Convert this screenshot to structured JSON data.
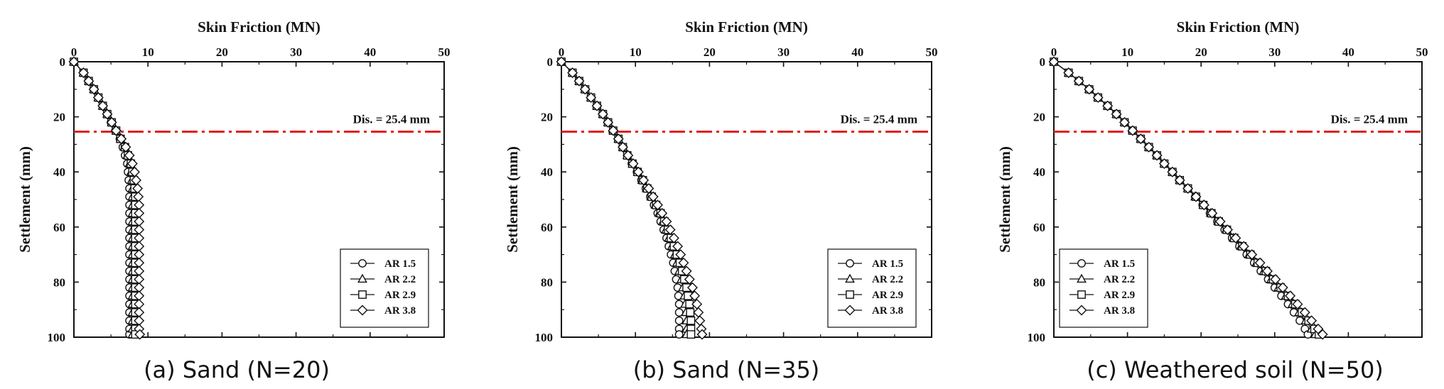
{
  "chart_data": [
    {
      "type": "line",
      "caption": "(a) Sand (N=20)",
      "xlabel": "Skin Friction (MN)",
      "ylabel": "Settlement (mm)",
      "xlim": [
        0,
        50
      ],
      "ylim": [
        0,
        100
      ],
      "x_ticks": [
        "0",
        "10",
        "20",
        "30",
        "40",
        "50"
      ],
      "y_ticks": [
        "0",
        "20",
        "40",
        "60",
        "80",
        "100"
      ],
      "annotation": "Dis. = 25.4 mm",
      "reference_line_y": 25.4,
      "legend_position": "bottom-right",
      "series": [
        {
          "name": "AR 1.5",
          "marker": "circle",
          "y": [
            0,
            4,
            7,
            10,
            13,
            16,
            19,
            22,
            25,
            28,
            31,
            34,
            37,
            40,
            43,
            46,
            49,
            52,
            55,
            58,
            61,
            64,
            67,
            70,
            73,
            76,
            79,
            82,
            85,
            88,
            91,
            94,
            97,
            99
          ],
          "x": [
            0,
            1.3,
            2.0,
            2.7,
            3.3,
            3.9,
            4.5,
            5.0,
            5.6,
            6.2,
            6.6,
            6.9,
            7.2,
            7.3,
            7.4,
            7.5,
            7.5,
            7.5,
            7.5,
            7.5,
            7.5,
            7.5,
            7.5,
            7.5,
            7.5,
            7.5,
            7.5,
            7.5,
            7.5,
            7.5,
            7.5,
            7.5,
            7.5,
            7.5
          ]
        },
        {
          "name": "AR 2.2",
          "marker": "triangle",
          "y": [
            0,
            4,
            7,
            10,
            13,
            16,
            19,
            22,
            25,
            28,
            31,
            34,
            37,
            40,
            43,
            46,
            49,
            52,
            55,
            58,
            61,
            64,
            67,
            70,
            73,
            76,
            79,
            82,
            85,
            88,
            91,
            94,
            97,
            99
          ],
          "x": [
            0,
            1.3,
            2.0,
            2.7,
            3.3,
            3.9,
            4.5,
            5.1,
            5.7,
            6.3,
            6.8,
            7.2,
            7.5,
            7.7,
            7.8,
            7.9,
            7.9,
            7.9,
            7.9,
            7.9,
            7.9,
            7.9,
            7.9,
            7.9,
            7.9,
            7.9,
            7.9,
            7.9,
            7.9,
            7.9,
            7.9,
            7.9,
            7.9,
            7.9
          ]
        },
        {
          "name": "AR 2.9",
          "marker": "square",
          "y": [
            0,
            4,
            7,
            10,
            13,
            16,
            19,
            22,
            25,
            28,
            31,
            34,
            37,
            40,
            43,
            46,
            49,
            52,
            55,
            58,
            61,
            64,
            67,
            70,
            73,
            76,
            79,
            82,
            85,
            88,
            91,
            94,
            97,
            99
          ],
          "x": [
            0,
            1.3,
            2.0,
            2.7,
            3.3,
            3.9,
            4.5,
            5.1,
            5.7,
            6.3,
            6.9,
            7.3,
            7.7,
            7.9,
            8.1,
            8.2,
            8.3,
            8.3,
            8.3,
            8.3,
            8.3,
            8.3,
            8.3,
            8.3,
            8.3,
            8.3,
            8.3,
            8.3,
            8.3,
            8.3,
            8.3,
            8.3,
            8.3,
            8.3
          ]
        },
        {
          "name": "AR 3.8",
          "marker": "diamond",
          "y": [
            0,
            4,
            7,
            10,
            13,
            16,
            19,
            22,
            25,
            28,
            31,
            34,
            37,
            40,
            43,
            46,
            49,
            52,
            55,
            58,
            61,
            64,
            67,
            70,
            73,
            76,
            79,
            82,
            85,
            88,
            91,
            94,
            97,
            99
          ],
          "x": [
            0,
            1.3,
            2.0,
            2.7,
            3.3,
            3.9,
            4.5,
            5.1,
            5.7,
            6.4,
            7.0,
            7.5,
            7.9,
            8.2,
            8.4,
            8.6,
            8.7,
            8.8,
            8.8,
            8.8,
            8.8,
            8.8,
            8.8,
            8.8,
            8.8,
            8.8,
            8.8,
            8.8,
            8.8,
            8.8,
            8.8,
            8.8,
            8.8,
            8.9
          ]
        }
      ]
    },
    {
      "type": "line",
      "caption": "(b) Sand (N=35)",
      "xlabel": "Skin Friction (MN)",
      "ylabel": "Settlement (mm)",
      "xlim": [
        0,
        50
      ],
      "ylim": [
        0,
        100
      ],
      "x_ticks": [
        "0",
        "10",
        "20",
        "30",
        "40",
        "50"
      ],
      "y_ticks": [
        "0",
        "20",
        "40",
        "60",
        "80",
        "100"
      ],
      "annotation": "Dis. = 25.4 mm",
      "reference_line_y": 25.4,
      "legend_position": "bottom-right",
      "series": [
        {
          "name": "AR 1.5",
          "marker": "circle",
          "y": [
            0,
            4,
            7,
            10,
            13,
            16,
            19,
            22,
            25,
            28,
            31,
            34,
            37,
            40,
            43,
            46,
            49,
            52,
            55,
            58,
            61,
            64,
            67,
            70,
            73,
            76,
            79,
            82,
            85,
            88,
            91,
            94,
            97,
            99
          ],
          "x": [
            0,
            1.5,
            2.4,
            3.2,
            4.0,
            4.8,
            5.6,
            6.3,
            7.0,
            7.7,
            8.3,
            8.9,
            9.5,
            10.2,
            10.8,
            11.4,
            12.0,
            12.5,
            13.0,
            13.4,
            13.8,
            14.2,
            14.5,
            14.8,
            15.1,
            15.3,
            15.5,
            15.7,
            15.8,
            15.9,
            15.9,
            15.9,
            15.9,
            15.9
          ]
        },
        {
          "name": "AR 2.2",
          "marker": "triangle",
          "y": [
            0,
            4,
            7,
            10,
            13,
            16,
            19,
            22,
            25,
            28,
            31,
            34,
            37,
            40,
            43,
            46,
            49,
            52,
            55,
            58,
            61,
            64,
            67,
            70,
            73,
            76,
            79,
            82,
            85,
            88,
            91,
            94,
            97,
            99
          ],
          "x": [
            0,
            1.5,
            2.4,
            3.2,
            4.0,
            4.8,
            5.6,
            6.3,
            7.0,
            7.7,
            8.3,
            8.9,
            9.6,
            10.3,
            10.9,
            11.5,
            12.1,
            12.7,
            13.2,
            13.7,
            14.1,
            14.5,
            14.9,
            15.3,
            15.6,
            15.9,
            16.2,
            16.4,
            16.6,
            16.7,
            16.8,
            16.9,
            16.9,
            16.9
          ]
        },
        {
          "name": "AR 2.9",
          "marker": "square",
          "y": [
            0,
            4,
            7,
            10,
            13,
            16,
            19,
            22,
            25,
            28,
            31,
            34,
            37,
            40,
            43,
            46,
            49,
            52,
            55,
            58,
            61,
            64,
            67,
            70,
            73,
            76,
            79,
            82,
            85,
            88,
            91,
            94,
            97,
            99
          ],
          "x": [
            0,
            1.5,
            2.4,
            3.2,
            4.0,
            4.8,
            5.6,
            6.3,
            7.0,
            7.7,
            8.3,
            8.9,
            9.6,
            10.3,
            11.0,
            11.6,
            12.2,
            12.8,
            13.4,
            13.9,
            14.4,
            14.8,
            15.2,
            15.6,
            16.0,
            16.3,
            16.6,
            16.9,
            17.1,
            17.3,
            17.4,
            17.5,
            17.5,
            17.5
          ]
        },
        {
          "name": "AR 3.8",
          "marker": "diamond",
          "y": [
            0,
            4,
            7,
            10,
            13,
            16,
            19,
            22,
            25,
            28,
            31,
            34,
            37,
            40,
            43,
            46,
            49,
            52,
            55,
            58,
            61,
            64,
            67,
            70,
            73,
            76,
            79,
            82,
            85,
            88,
            91,
            94,
            97,
            99
          ],
          "x": [
            0,
            1.5,
            2.4,
            3.2,
            4.0,
            4.8,
            5.6,
            6.3,
            7.0,
            7.7,
            8.3,
            9.0,
            9.7,
            10.4,
            11.1,
            11.8,
            12.4,
            13.0,
            13.6,
            14.2,
            14.7,
            15.2,
            15.7,
            16.1,
            16.5,
            16.9,
            17.3,
            17.7,
            18.0,
            18.3,
            18.5,
            18.7,
            18.9,
            19.0
          ]
        }
      ]
    },
    {
      "type": "line",
      "caption": "(c) Weathered soil (N=50)",
      "xlabel": "Skin Friction (MN)",
      "ylabel": "Settlement (mm)",
      "xlim": [
        0,
        50
      ],
      "ylim": [
        0,
        100
      ],
      "x_ticks": [
        "0",
        "10",
        "20",
        "30",
        "40",
        "50"
      ],
      "y_ticks": [
        "0",
        "20",
        "40",
        "60",
        "80",
        "100"
      ],
      "annotation": "Dis. = 25.4 mm",
      "reference_line_y": 25.4,
      "legend_position": "bottom-left",
      "series": [
        {
          "name": "AR 1.5",
          "marker": "circle",
          "y": [
            0,
            4,
            7,
            10,
            13,
            16,
            19,
            22,
            25,
            28,
            31,
            34,
            37,
            40,
            43,
            46,
            49,
            52,
            55,
            58,
            61,
            64,
            67,
            70,
            73,
            76,
            79,
            82,
            85,
            88,
            91,
            94,
            97,
            99
          ],
          "x": [
            0,
            2.0,
            3.4,
            4.8,
            6.0,
            7.3,
            8.5,
            9.6,
            10.7,
            11.8,
            12.9,
            14.0,
            15.0,
            16.1,
            17.1,
            18.2,
            19.2,
            20.2,
            21.2,
            22.2,
            23.2,
            24.2,
            25.2,
            26.2,
            27.2,
            28.1,
            29.1,
            30.0,
            30.9,
            31.8,
            32.6,
            33.4,
            34.1,
            34.5
          ]
        },
        {
          "name": "AR 2.2",
          "marker": "triangle",
          "y": [
            0,
            4,
            7,
            10,
            13,
            16,
            19,
            22,
            25,
            28,
            31,
            34,
            37,
            40,
            43,
            46,
            49,
            52,
            55,
            58,
            61,
            64,
            67,
            70,
            73,
            76,
            79,
            82,
            85,
            88,
            91,
            94,
            97,
            99
          ],
          "x": [
            0,
            2.0,
            3.4,
            4.8,
            6.0,
            7.3,
            8.5,
            9.6,
            10.7,
            11.8,
            12.9,
            14.0,
            15.0,
            16.1,
            17.1,
            18.2,
            19.2,
            20.3,
            21.3,
            22.3,
            23.4,
            24.4,
            25.4,
            26.5,
            27.5,
            28.5,
            29.5,
            30.5,
            31.5,
            32.4,
            33.3,
            34.2,
            35.0,
            35.5
          ]
        },
        {
          "name": "AR 2.9",
          "marker": "square",
          "y": [
            0,
            4,
            7,
            10,
            13,
            16,
            19,
            22,
            25,
            28,
            31,
            34,
            37,
            40,
            43,
            46,
            49,
            52,
            55,
            58,
            61,
            64,
            67,
            70,
            73,
            76,
            79,
            82,
            85,
            88,
            91,
            94,
            97,
            99
          ],
          "x": [
            0,
            2.0,
            3.4,
            4.8,
            6.0,
            7.3,
            8.5,
            9.6,
            10.7,
            11.8,
            12.9,
            14.0,
            15.0,
            16.1,
            17.1,
            18.2,
            19.3,
            20.3,
            21.4,
            22.4,
            23.5,
            24.5,
            25.6,
            26.7,
            27.7,
            28.8,
            29.8,
            30.8,
            31.8,
            32.8,
            33.7,
            34.6,
            35.4,
            36.0
          ]
        },
        {
          "name": "AR 3.8",
          "marker": "diamond",
          "y": [
            0,
            4,
            7,
            10,
            13,
            16,
            19,
            22,
            25,
            28,
            31,
            34,
            37,
            40,
            43,
            46,
            49,
            52,
            55,
            58,
            61,
            64,
            67,
            70,
            73,
            76,
            79,
            82,
            85,
            88,
            91,
            94,
            97,
            99
          ],
          "x": [
            0,
            2.0,
            3.4,
            4.8,
            6.0,
            7.3,
            8.5,
            9.6,
            10.7,
            11.8,
            12.9,
            14.0,
            15.0,
            16.1,
            17.1,
            18.2,
            19.3,
            20.4,
            21.5,
            22.6,
            23.6,
            24.7,
            25.8,
            26.9,
            28.0,
            29.0,
            30.1,
            31.1,
            32.1,
            33.1,
            34.1,
            35.0,
            35.9,
            36.5
          ]
        }
      ]
    }
  ],
  "colors": {
    "reference_line": "#e02020",
    "axis": "#111111",
    "marker_stroke": "#111111",
    "marker_fill": "#ffffff"
  }
}
